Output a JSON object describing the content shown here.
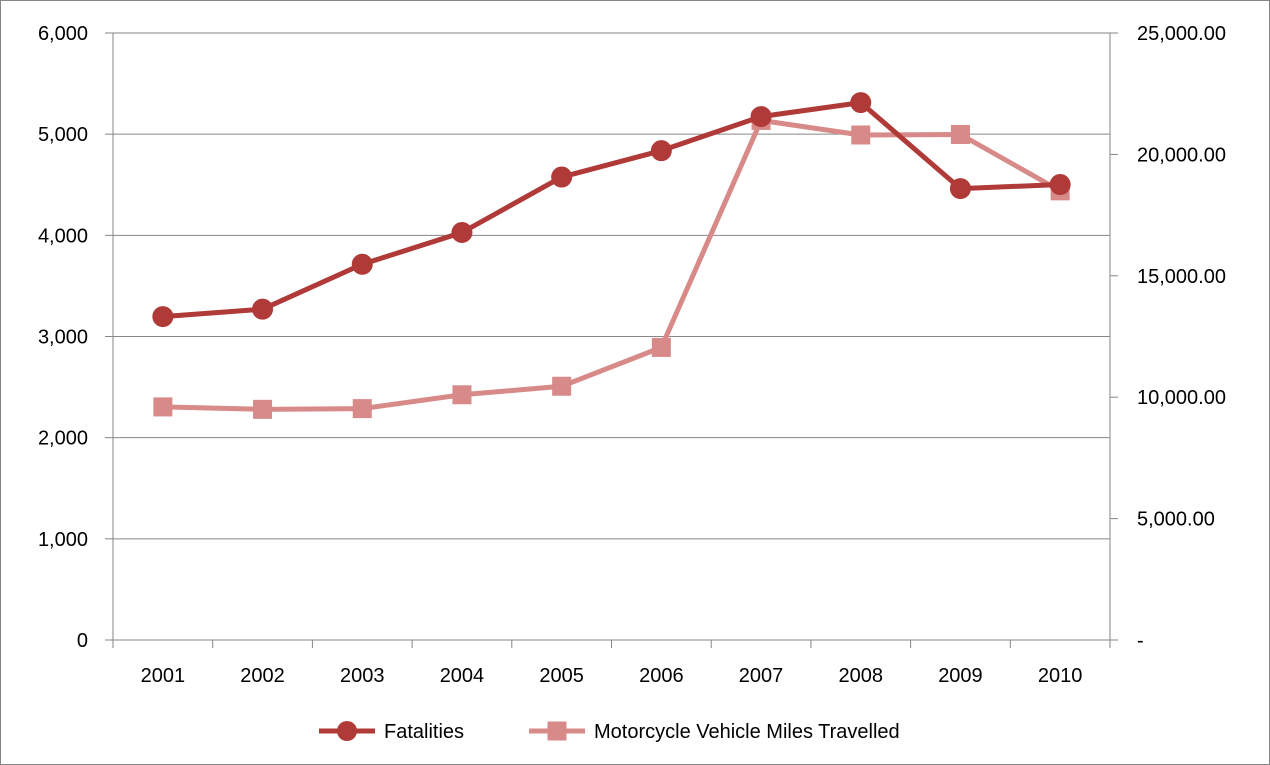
{
  "chart_data": {
    "type": "line",
    "categories": [
      "2001",
      "2002",
      "2003",
      "2004",
      "2005",
      "2006",
      "2007",
      "2008",
      "2009",
      "2010"
    ],
    "series": [
      {
        "name": "Fatalities",
        "axis": "left",
        "marker": "circle",
        "color": "#B03A37",
        "values": [
          3197,
          3270,
          3714,
          4028,
          4576,
          4837,
          5174,
          5312,
          4462,
          4502
        ]
      },
      {
        "name": "Motorcycle Vehicle Miles Travelled",
        "axis": "right",
        "marker": "square",
        "color": "#D88A88",
        "values": [
          9600,
          9500,
          9530,
          10100,
          10450,
          12050,
          21400,
          20800,
          20820,
          18500
        ]
      }
    ],
    "y_left": {
      "range": [
        0,
        6000
      ],
      "ticks": [
        0,
        1000,
        2000,
        3000,
        4000,
        5000,
        6000
      ],
      "tick_labels": [
        "0",
        "1,000",
        "2,000",
        "3,000",
        "4,000",
        "5,000",
        "6,000"
      ]
    },
    "y_right": {
      "range": [
        0,
        25000
      ],
      "ticks": [
        0,
        5000,
        10000,
        15000,
        20000,
        25000
      ],
      "tick_labels": [
        "-",
        "5,000.00",
        "10,000.00",
        "15,000.00",
        "20,000.00",
        "25,000.00"
      ]
    },
    "grid": true,
    "legend_position": "bottom",
    "grid_color": "#868686",
    "axis_color": "#868686"
  }
}
